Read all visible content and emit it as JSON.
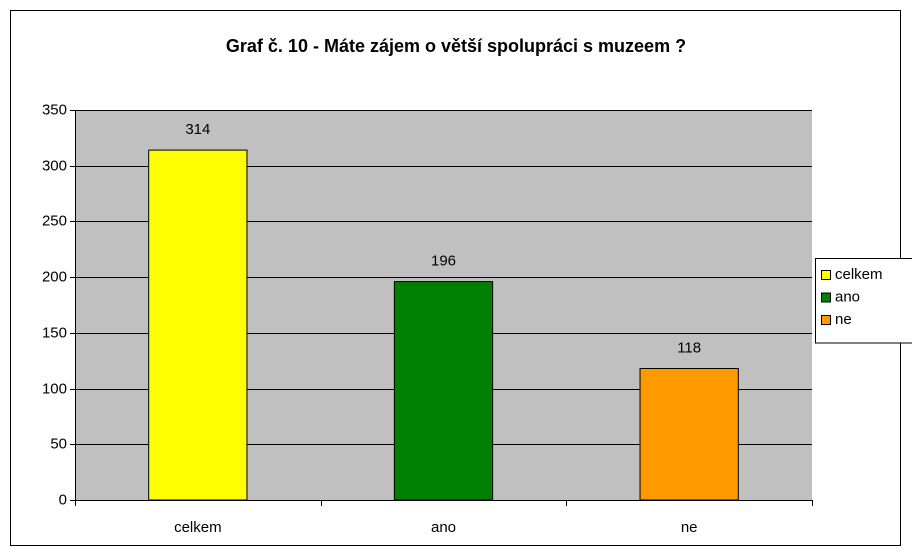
{
  "chart_data": {
    "type": "bar",
    "title": "Graf č. 10 - Máte zájem o větší spolupráci s muzeem ?",
    "categories": [
      "celkem",
      "ano",
      "ne"
    ],
    "values": [
      314,
      196,
      118
    ],
    "colors": [
      "#ffff00",
      "#008000",
      "#ff9900"
    ],
    "ylim": [
      0,
      350
    ],
    "yticks": [
      0,
      50,
      100,
      150,
      200,
      250,
      300,
      350
    ],
    "grid": true,
    "legend": "right"
  }
}
